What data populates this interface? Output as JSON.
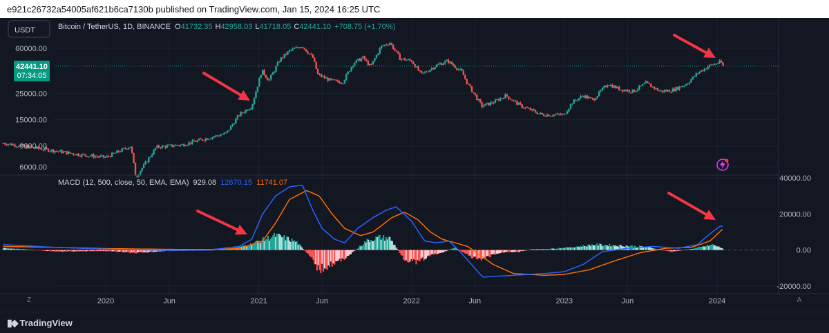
{
  "header": {
    "published_text": "e921c26732a54005af621b6ca7130b published on TradingView.com, Jan 15, 2024 16:25 UTC"
  },
  "symbol_bar": {
    "currency_button": "USDT",
    "symbol_title": "Bitcoin / TetherUS, 1D, BINANCE",
    "ohlc": [
      {
        "key": "O",
        "value": "41732.35"
      },
      {
        "key": "H",
        "value": "42958.03"
      },
      {
        "key": "L",
        "value": "41718.05"
      },
      {
        "key": "C",
        "value": "42441.10"
      }
    ],
    "change": "+708.75 (+1.70%)"
  },
  "price_badge": {
    "price": "42441.10",
    "countdown": "07:34:05"
  },
  "macd_legend": {
    "title": "MACD (12, 500, close, 50, EMA, EMA)",
    "histogram_value": "929.08",
    "macd_value": "12670.15",
    "signal_value": "11741.07"
  },
  "footer": {
    "brand": "TradingView"
  },
  "icons": {
    "lightning": "lightning-icon",
    "logo": "tradingview-logo-icon"
  },
  "colors": {
    "background": "#131722",
    "up": "#26a69a",
    "down": "#ef5350",
    "macd_line": "#2962ff",
    "signal_line": "#ff6d00",
    "arrow": "#f23645",
    "price_badge": "#089981"
  },
  "chart_data": [
    {
      "type": "candlestick",
      "title": "Bitcoin / TetherUS, 1D, BINANCE",
      "scale": "log",
      "y_ticks": [
        6000,
        9000,
        15000,
        25000,
        60000
      ],
      "y_tick_labels": [
        "6000.00",
        "9000.00",
        "15000.00",
        "25000.00",
        "60000.00"
      ],
      "x_tick_labels": [
        "2020",
        "Jun",
        "2021",
        "Jun",
        "2022",
        "Jun",
        "2023",
        "Jun",
        "2024"
      ],
      "x_range": [
        "2019-05",
        "2024-07"
      ],
      "last_close": 42441.1,
      "series": {
        "t": [
          "2019-05-01",
          "2019-07-01",
          "2019-09-01",
          "2019-11-01",
          "2020-01-01",
          "2020-03-01",
          "2020-03-13",
          "2020-05-01",
          "2020-07-01",
          "2020-09-01",
          "2020-10-15",
          "2020-11-15",
          "2020-12-15",
          "2021-01-08",
          "2021-01-25",
          "2021-02-20",
          "2021-03-15",
          "2021-04-14",
          "2021-05-10",
          "2021-05-22",
          "2021-06-22",
          "2021-07-20",
          "2021-08-15",
          "2021-09-07",
          "2021-09-25",
          "2021-10-20",
          "2021-11-10",
          "2021-12-05",
          "2022-01-01",
          "2022-01-24",
          "2022-03-01",
          "2022-03-28",
          "2022-05-01",
          "2022-05-15",
          "2022-06-18",
          "2022-07-15",
          "2022-08-14",
          "2022-09-20",
          "2022-11-09",
          "2022-12-31",
          "2023-01-20",
          "2023-02-15",
          "2023-03-10",
          "2023-04-14",
          "2023-05-15",
          "2023-06-15",
          "2023-07-15",
          "2023-08-18",
          "2023-09-15",
          "2023-10-20",
          "2023-11-15",
          "2023-12-15",
          "2024-01-10",
          "2024-01-15"
        ],
        "close": [
          9500,
          8800,
          8200,
          7600,
          7200,
          9000,
          4900,
          8800,
          9200,
          10500,
          11500,
          16500,
          19500,
          39000,
          32000,
          48000,
          57000,
          63000,
          50000,
          36000,
          32000,
          31000,
          45000,
          50000,
          42000,
          62000,
          67000,
          49000,
          47000,
          36000,
          43000,
          47000,
          38000,
          30000,
          19500,
          21000,
          24000,
          19500,
          16500,
          16500,
          21000,
          24000,
          22000,
          30000,
          27000,
          26000,
          30500,
          26000,
          26500,
          30000,
          37000,
          43000,
          46000,
          42441
        ]
      }
    },
    {
      "type": "line",
      "title": "MACD (12, 500, close, 50, EMA, EMA)",
      "y_ticks": [
        -20000,
        0,
        20000,
        40000
      ],
      "y_tick_labels": [
        "-20000.00",
        "0.00",
        "20000.00",
        "40000.00"
      ],
      "series": [
        {
          "name": "MACD",
          "t": [
            "2019-05-01",
            "2019-09-01",
            "2020-01-01",
            "2020-06-01",
            "2020-09-01",
            "2020-11-15",
            "2020-12-15",
            "2021-01-10",
            "2021-02-10",
            "2021-03-15",
            "2021-04-15",
            "2021-05-10",
            "2021-06-01",
            "2021-07-01",
            "2021-07-25",
            "2021-08-25",
            "2021-10-01",
            "2021-11-01",
            "2021-11-25",
            "2022-01-01",
            "2022-02-01",
            "2022-03-01",
            "2022-04-01",
            "2022-05-01",
            "2022-06-01",
            "2022-06-20",
            "2022-09-01",
            "2022-11-15",
            "2023-01-01",
            "2023-02-15",
            "2023-04-01",
            "2023-06-01",
            "2023-08-01",
            "2023-10-01",
            "2023-11-15",
            "2023-12-15",
            "2024-01-10",
            "2024-01-15"
          ],
          "values": [
            3000,
            1500,
            500,
            -200,
            0,
            2000,
            6000,
            20000,
            30000,
            35000,
            36000,
            22000,
            12000,
            6000,
            4000,
            12000,
            18000,
            22000,
            24000,
            16000,
            5000,
            4000,
            5000,
            -2000,
            -10000,
            -15000,
            -14000,
            -13000,
            -12000,
            -8000,
            -1000,
            1000,
            2000,
            1000,
            3000,
            9000,
            13500,
            12670
          ]
        },
        {
          "name": "Signal",
          "t": [
            "2019-05-01",
            "2019-09-01",
            "2020-01-01",
            "2020-06-01",
            "2020-09-01",
            "2020-11-15",
            "2021-01-10",
            "2021-02-10",
            "2021-03-15",
            "2021-04-25",
            "2021-05-25",
            "2021-06-25",
            "2021-07-25",
            "2021-09-01",
            "2021-10-01",
            "2021-11-15",
            "2021-12-15",
            "2022-01-15",
            "2022-02-15",
            "2022-03-15",
            "2022-04-15",
            "2022-05-15",
            "2022-06-15",
            "2022-07-15",
            "2022-09-01",
            "2022-11-15",
            "2023-01-01",
            "2023-03-01",
            "2023-05-01",
            "2023-07-01",
            "2023-09-01",
            "2023-11-01",
            "2023-12-15",
            "2024-01-15"
          ],
          "values": [
            2000,
            1500,
            800,
            400,
            300,
            800,
            5000,
            15000,
            28000,
            33000,
            30000,
            20000,
            12000,
            8000,
            10000,
            18000,
            21000,
            17000,
            10000,
            6000,
            4000,
            2000,
            -3000,
            -8000,
            -13000,
            -14000,
            -13500,
            -11000,
            -6000,
            -1500,
            1000,
            1500,
            5000,
            11741
          ]
        }
      ],
      "histogram": {
        "t": [
          "2019-05-01",
          "2019-09-01",
          "2020-01-01",
          "2020-03-15",
          "2020-06-01",
          "2020-09-01",
          "2020-11-15",
          "2020-12-15",
          "2021-01-15",
          "2021-02-10",
          "2021-03-01",
          "2021-04-01",
          "2021-05-01",
          "2021-05-25",
          "2021-06-20",
          "2021-07-15",
          "2021-08-15",
          "2021-09-15",
          "2021-10-15",
          "2021-11-10",
          "2021-12-15",
          "2022-01-15",
          "2022-02-15",
          "2022-03-15",
          "2022-04-15",
          "2022-05-15",
          "2022-06-15",
          "2022-07-15",
          "2022-08-15",
          "2022-09-15",
          "2022-10-15",
          "2022-11-15",
          "2022-12-15",
          "2023-01-15",
          "2023-03-15",
          "2023-05-15",
          "2023-07-15",
          "2023-09-15",
          "2023-11-15",
          "2023-12-20",
          "2024-01-15"
        ],
        "values": [
          1200,
          -800,
          -600,
          -1500,
          -400,
          -300,
          1500,
          3500,
          6000,
          8000,
          7000,
          4500,
          -3000,
          -11000,
          -8000,
          -6000,
          -1000,
          5000,
          7000,
          6500,
          -5000,
          -7000,
          -3000,
          -1500,
          1500,
          -3000,
          -6000,
          -2500,
          -1000,
          -1000,
          500,
          500,
          1000,
          1500,
          3000,
          2500,
          1800,
          -1000,
          1200,
          3000,
          929
        ]
      }
    }
  ]
}
